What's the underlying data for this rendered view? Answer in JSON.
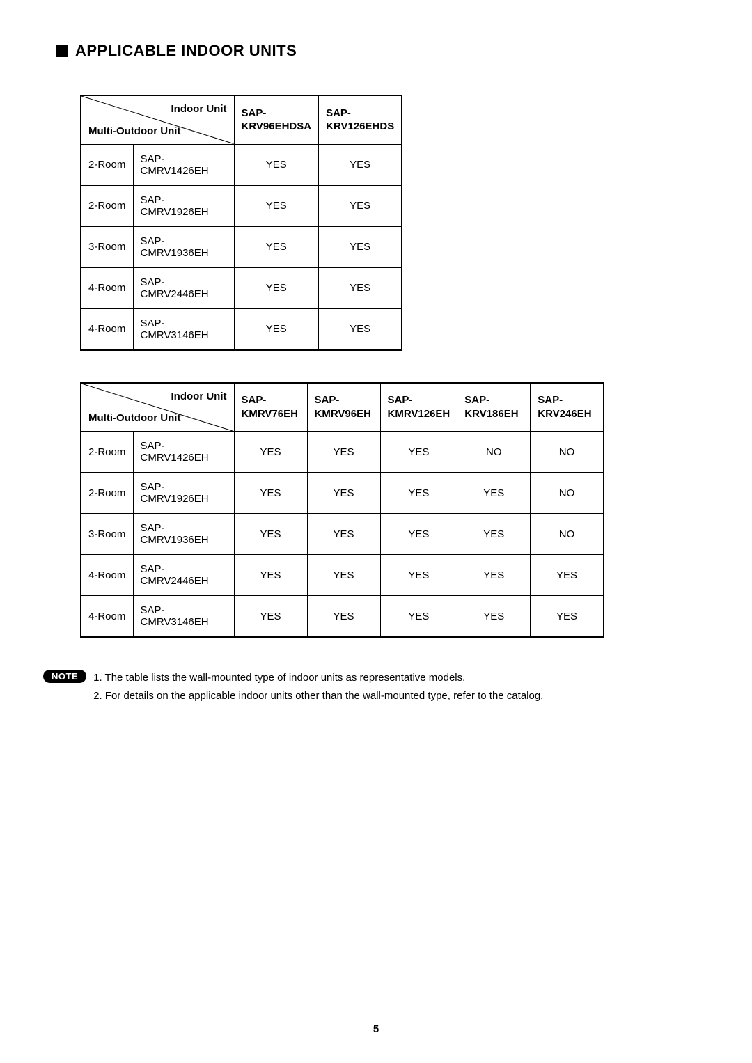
{
  "heading": "APPLICABLE INDOOR UNITS",
  "diagTop": "Indoor Unit",
  "diagBottom": "Multi-Outdoor Unit",
  "table1": {
    "columns": [
      "SAP-\nKRV96EHDSA",
      "SAP-\nKRV126EHDS"
    ],
    "rows": [
      {
        "room": "2-Room",
        "model": "SAP-CMRV1426EH",
        "vals": [
          "YES",
          "YES"
        ]
      },
      {
        "room": "2-Room",
        "model": "SAP-CMRV1926EH",
        "vals": [
          "YES",
          "YES"
        ]
      },
      {
        "room": "3-Room",
        "model": "SAP-CMRV1936EH",
        "vals": [
          "YES",
          "YES"
        ]
      },
      {
        "room": "4-Room",
        "model": "SAP-CMRV2446EH",
        "vals": [
          "YES",
          "YES"
        ]
      },
      {
        "room": "4-Room",
        "model": "SAP-CMRV3146EH",
        "vals": [
          "YES",
          "YES"
        ]
      }
    ]
  },
  "table2": {
    "columns": [
      "SAP-\nKMRV76EH",
      "SAP-\nKMRV96EH",
      "SAP-\nKMRV126EH",
      "SAP-\nKRV186EH",
      "SAP-\nKRV246EH"
    ],
    "rows": [
      {
        "room": "2-Room",
        "model": "SAP-CMRV1426EH",
        "vals": [
          "YES",
          "YES",
          "YES",
          "NO",
          "NO"
        ]
      },
      {
        "room": "2-Room",
        "model": "SAP-CMRV1926EH",
        "vals": [
          "YES",
          "YES",
          "YES",
          "YES",
          "NO"
        ]
      },
      {
        "room": "3-Room",
        "model": "SAP-CMRV1936EH",
        "vals": [
          "YES",
          "YES",
          "YES",
          "YES",
          "NO"
        ]
      },
      {
        "room": "4-Room",
        "model": "SAP-CMRV2446EH",
        "vals": [
          "YES",
          "YES",
          "YES",
          "YES",
          "YES"
        ]
      },
      {
        "room": "4-Room",
        "model": "SAP-CMRV3146EH",
        "vals": [
          "YES",
          "YES",
          "YES",
          "YES",
          "YES"
        ]
      }
    ]
  },
  "noteLabel": "NOTE",
  "notes": [
    "1. The table lists the wall-mounted type of indoor units as representative models.",
    "2. For details on the applicable indoor units other than the wall-mounted type, refer to the catalog."
  ],
  "pageNumber": "5"
}
